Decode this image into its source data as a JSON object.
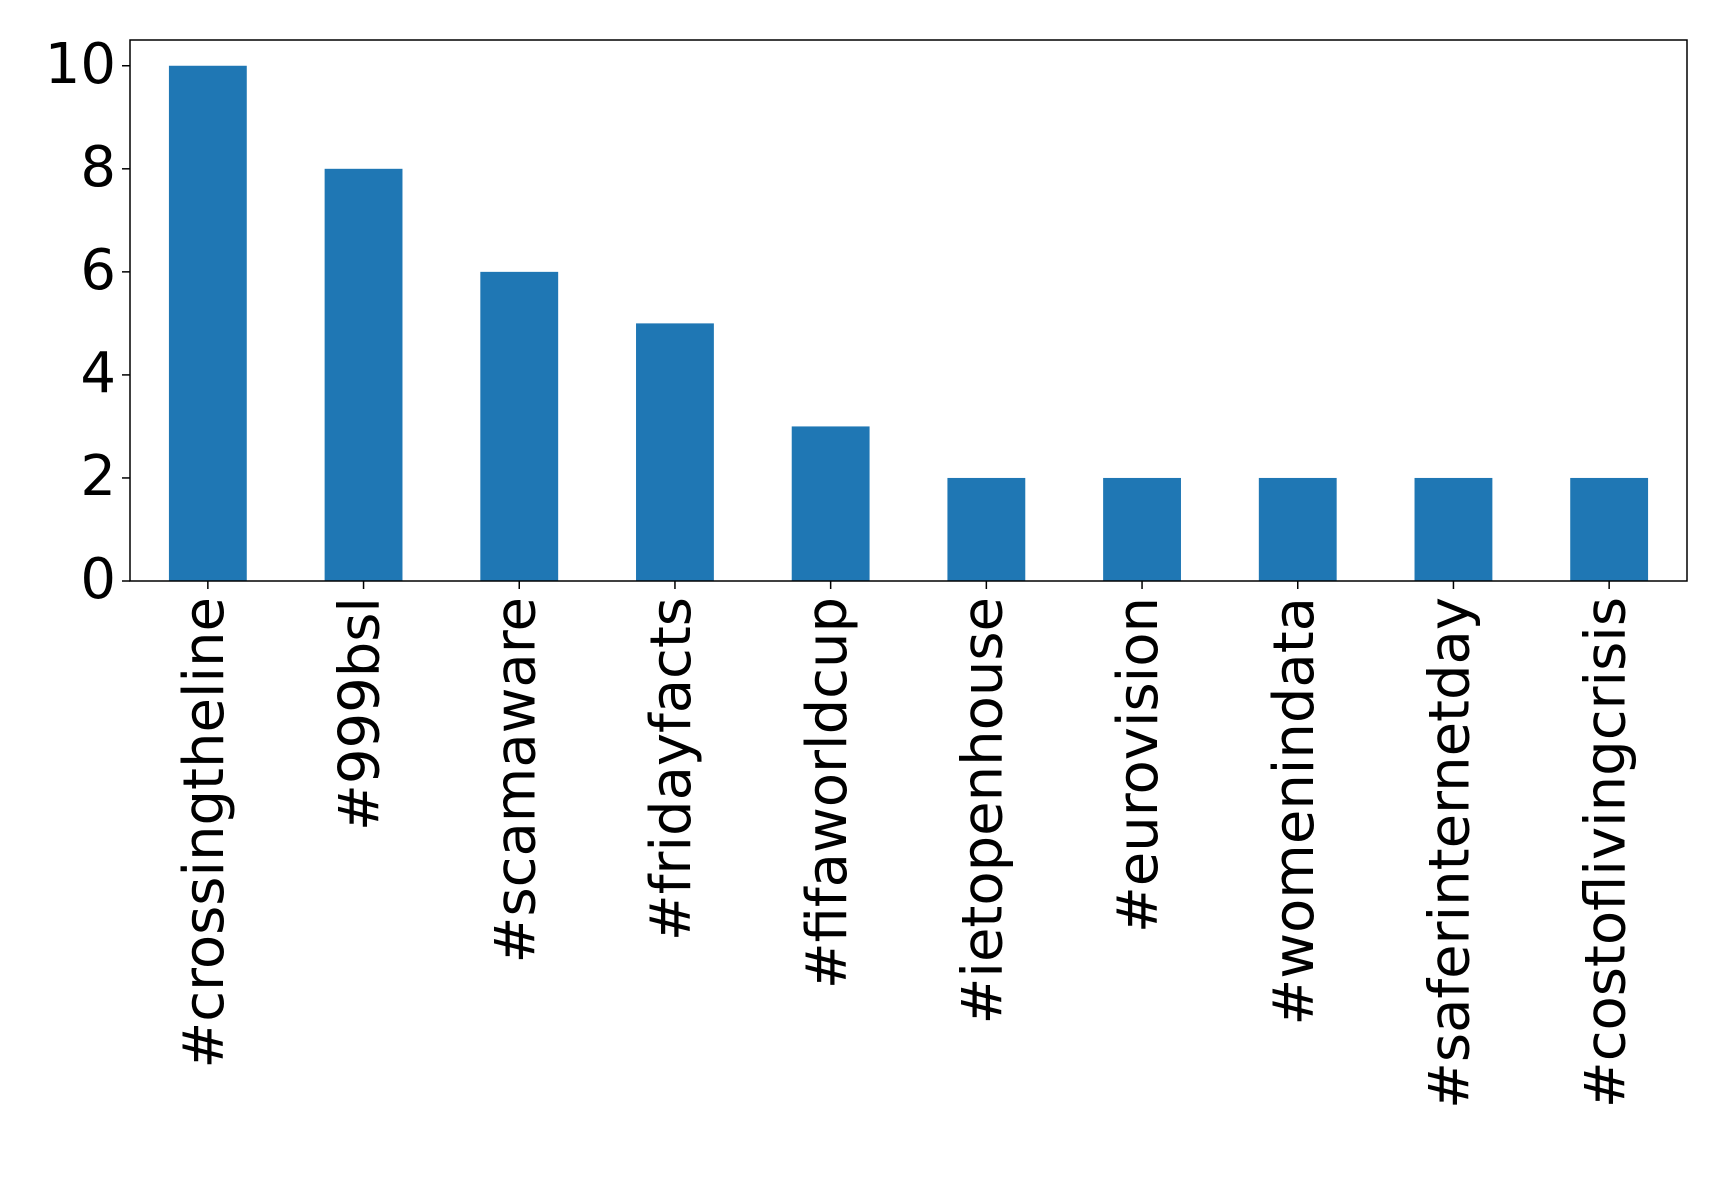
{
  "chart_data": {
    "type": "bar",
    "categories": [
      "#crossingtheline",
      "#999bsl",
      "#scamaware",
      "#fridayfacts",
      "#fifaworldcup",
      "#ietopenhouse",
      "#eurovision",
      "#womenindata",
      "#saferinternetday",
      "#costoflivingcrisis"
    ],
    "values": [
      10,
      8,
      6,
      5,
      3,
      2,
      2,
      2,
      2,
      2
    ],
    "color": "#1f77b4",
    "ylim": [
      0,
      10.5
    ],
    "yticks": [
      0,
      2,
      4,
      6,
      8,
      10
    ],
    "grid": false
  }
}
